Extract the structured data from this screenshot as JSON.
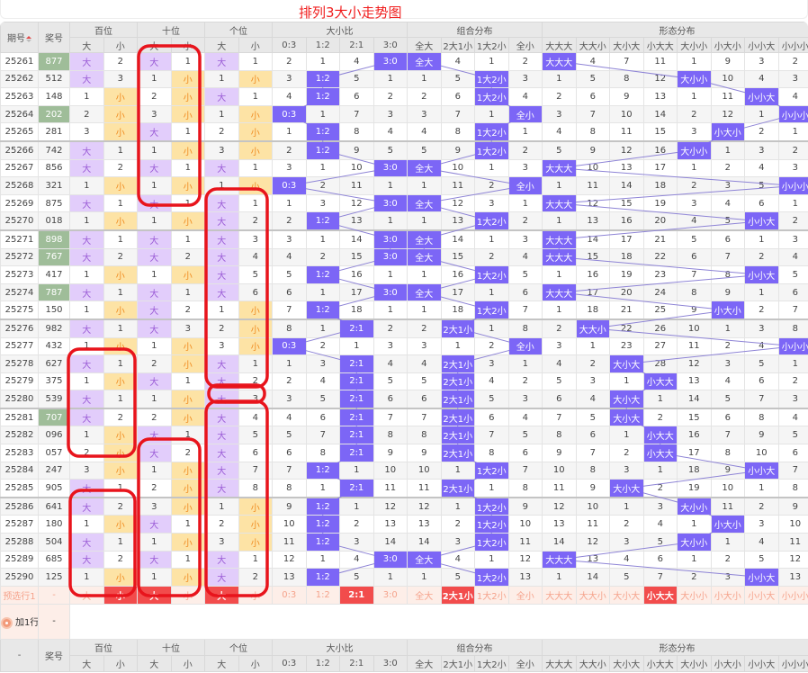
{
  "title": "排列3大小走势图",
  "colors": {
    "big_bg": "#e2cdfb",
    "small_bg": "#fde3a5",
    "hit": "#7c66f6",
    "highlight_number": "#9fbd99",
    "preselect_selected": "#f24c4c",
    "title": "#f01c1c",
    "annotation": "#e8141c"
  },
  "header": {
    "period": "期号",
    "number": "奖号",
    "sort_icon": "sort-arrows-icon",
    "groups": [
      {
        "label": "百位",
        "cols": [
          "大",
          "小"
        ]
      },
      {
        "label": "十位",
        "cols": [
          "大",
          "小"
        ]
      },
      {
        "label": "个位",
        "cols": [
          "大",
          "小"
        ]
      },
      {
        "label": "大小比",
        "cols": [
          "0:3",
          "1:2",
          "2:1",
          "3:0"
        ]
      },
      {
        "label": "组合分布",
        "cols": [
          "全大",
          "2大1小",
          "1大2小",
          "全小"
        ]
      },
      {
        "label": "形态分布",
        "cols": [
          "大大大",
          "大大小",
          "大小大",
          "小大大",
          "大小小",
          "小大小",
          "小小大",
          "小小小"
        ]
      }
    ]
  },
  "rows": [
    {
      "period": "25261",
      "number": "877",
      "highlight": true,
      "cells": [
        "大",
        "2",
        "大",
        "1",
        "大",
        "1",
        "2",
        "1",
        "4",
        "3:0",
        "全大",
        "4",
        "1",
        "2",
        "大大大",
        "4",
        "7",
        "11",
        "1",
        "9",
        "3",
        "2"
      ]
    },
    {
      "period": "25262",
      "number": "512",
      "highlight": false,
      "cells": [
        "大",
        "3",
        "1",
        "小",
        "1",
        "小",
        "3",
        "1:2",
        "5",
        "1",
        "1",
        "5",
        "1大2小",
        "3",
        "1",
        "5",
        "8",
        "12",
        "大小小",
        "10",
        "4",
        "3"
      ]
    },
    {
      "period": "25263",
      "number": "148",
      "highlight": false,
      "cells": [
        "1",
        "小",
        "2",
        "小",
        "大",
        "1",
        "4",
        "1:2",
        "6",
        "2",
        "2",
        "6",
        "1大2小",
        "4",
        "2",
        "6",
        "9",
        "13",
        "1",
        "11",
        "小小大",
        "4"
      ]
    },
    {
      "period": "25264",
      "number": "202",
      "highlight": true,
      "cells": [
        "2",
        "小",
        "3",
        "小",
        "1",
        "小",
        "0:3",
        "1",
        "7",
        "3",
        "3",
        "7",
        "1",
        "全小",
        "3",
        "7",
        "10",
        "14",
        "2",
        "12",
        "1",
        "小小小"
      ]
    },
    {
      "period": "25265",
      "number": "281",
      "highlight": false,
      "cells": [
        "3",
        "小",
        "大",
        "1",
        "2",
        "小",
        "1",
        "1:2",
        "8",
        "4",
        "4",
        "8",
        "1大2小",
        "1",
        "4",
        "8",
        "11",
        "15",
        "3",
        "小大小",
        "2",
        "1"
      ]
    },
    {
      "period": "25266",
      "number": "742",
      "highlight": false,
      "cells": [
        "大",
        "1",
        "1",
        "小",
        "3",
        "小",
        "2",
        "1:2",
        "9",
        "5",
        "5",
        "9",
        "1大2小",
        "2",
        "5",
        "9",
        "12",
        "16",
        "大小小",
        "1",
        "3",
        "2"
      ]
    },
    {
      "period": "25267",
      "number": "856",
      "highlight": false,
      "cells": [
        "大",
        "2",
        "大",
        "1",
        "大",
        "1",
        "3",
        "1",
        "10",
        "3:0",
        "全大",
        "10",
        "1",
        "3",
        "大大大",
        "10",
        "13",
        "17",
        "1",
        "2",
        "4",
        "3"
      ]
    },
    {
      "period": "25268",
      "number": "321",
      "highlight": false,
      "cells": [
        "1",
        "小",
        "1",
        "小",
        "1",
        "小",
        "0:3",
        "2",
        "11",
        "1",
        "1",
        "11",
        "2",
        "全小",
        "1",
        "11",
        "14",
        "18",
        "2",
        "3",
        "5",
        "小小小"
      ]
    },
    {
      "period": "25269",
      "number": "875",
      "highlight": false,
      "cells": [
        "大",
        "1",
        "大",
        "1",
        "大",
        "1",
        "1",
        "3",
        "12",
        "3:0",
        "全大",
        "12",
        "3",
        "1",
        "大大大",
        "12",
        "15",
        "19",
        "3",
        "4",
        "6",
        "1"
      ]
    },
    {
      "period": "25270",
      "number": "018",
      "highlight": false,
      "cells": [
        "1",
        "小",
        "1",
        "小",
        "大",
        "2",
        "2",
        "1:2",
        "13",
        "1",
        "1",
        "13",
        "1大2小",
        "2",
        "1",
        "13",
        "16",
        "20",
        "4",
        "5",
        "小小大",
        "2"
      ]
    },
    {
      "period": "25271",
      "number": "898",
      "highlight": true,
      "cells": [
        "大",
        "1",
        "大",
        "1",
        "大",
        "3",
        "3",
        "1",
        "14",
        "3:0",
        "全大",
        "14",
        "1",
        "3",
        "大大大",
        "14",
        "17",
        "21",
        "5",
        "6",
        "1",
        "3"
      ]
    },
    {
      "period": "25272",
      "number": "767",
      "highlight": true,
      "cells": [
        "大",
        "2",
        "大",
        "2",
        "大",
        "4",
        "4",
        "2",
        "15",
        "3:0",
        "全大",
        "15",
        "2",
        "4",
        "大大大",
        "15",
        "18",
        "22",
        "6",
        "7",
        "2",
        "4"
      ]
    },
    {
      "period": "25273",
      "number": "417",
      "highlight": false,
      "cells": [
        "1",
        "小",
        "1",
        "小",
        "大",
        "5",
        "5",
        "1:2",
        "16",
        "1",
        "1",
        "16",
        "1大2小",
        "5",
        "1",
        "16",
        "19",
        "23",
        "7",
        "8",
        "小小大",
        "5"
      ]
    },
    {
      "period": "25274",
      "number": "787",
      "highlight": true,
      "cells": [
        "大",
        "1",
        "大",
        "1",
        "大",
        "6",
        "6",
        "1",
        "17",
        "3:0",
        "全大",
        "17",
        "1",
        "6",
        "大大大",
        "17",
        "20",
        "24",
        "8",
        "9",
        "1",
        "6"
      ]
    },
    {
      "period": "25275",
      "number": "150",
      "highlight": false,
      "cells": [
        "1",
        "小",
        "大",
        "2",
        "1",
        "小",
        "7",
        "1:2",
        "18",
        "1",
        "1",
        "18",
        "1大2小",
        "7",
        "1",
        "18",
        "21",
        "25",
        "9",
        "小大小",
        "2",
        "7"
      ]
    },
    {
      "period": "25276",
      "number": "982",
      "highlight": false,
      "cells": [
        "大",
        "1",
        "大",
        "3",
        "2",
        "小",
        "8",
        "1",
        "2:1",
        "2",
        "2",
        "2大1小",
        "1",
        "8",
        "2",
        "大大小",
        "22",
        "26",
        "10",
        "1",
        "3",
        "8"
      ]
    },
    {
      "period": "25277",
      "number": "432",
      "highlight": false,
      "cells": [
        "1",
        "小",
        "1",
        "小",
        "3",
        "小",
        "0:3",
        "2",
        "1",
        "3",
        "3",
        "1",
        "2",
        "全小",
        "3",
        "1",
        "23",
        "27",
        "11",
        "2",
        "4",
        "小小小"
      ]
    },
    {
      "period": "25278",
      "number": "627",
      "highlight": false,
      "cells": [
        "大",
        "1",
        "2",
        "小",
        "大",
        "1",
        "1",
        "3",
        "2:1",
        "4",
        "4",
        "2大1小",
        "3",
        "1",
        "4",
        "2",
        "大小大",
        "28",
        "12",
        "3",
        "5",
        "1"
      ]
    },
    {
      "period": "25279",
      "number": "375",
      "highlight": false,
      "cells": [
        "1",
        "小",
        "大",
        "1",
        "大",
        "2",
        "2",
        "4",
        "2:1",
        "5",
        "5",
        "2大1小",
        "4",
        "2",
        "5",
        "3",
        "1",
        "小大大",
        "13",
        "4",
        "6",
        "2"
      ]
    },
    {
      "period": "25280",
      "number": "539",
      "highlight": false,
      "cells": [
        "大",
        "1",
        "1",
        "小",
        "大",
        "3",
        "3",
        "5",
        "2:1",
        "6",
        "6",
        "2大1小",
        "5",
        "3",
        "6",
        "4",
        "大小大",
        "1",
        "14",
        "5",
        "7",
        "3"
      ]
    },
    {
      "period": "25281",
      "number": "707",
      "highlight": true,
      "cells": [
        "大",
        "2",
        "2",
        "小",
        "大",
        "4",
        "4",
        "6",
        "2:1",
        "7",
        "7",
        "2大1小",
        "6",
        "4",
        "7",
        "5",
        "大小大",
        "2",
        "15",
        "6",
        "8",
        "4"
      ]
    },
    {
      "period": "25282",
      "number": "096",
      "highlight": false,
      "cells": [
        "1",
        "小",
        "大",
        "1",
        "大",
        "5",
        "5",
        "7",
        "2:1",
        "8",
        "8",
        "2大1小",
        "7",
        "5",
        "8",
        "6",
        "1",
        "小大大",
        "16",
        "7",
        "9",
        "5"
      ]
    },
    {
      "period": "25283",
      "number": "057",
      "highlight": false,
      "cells": [
        "2",
        "小",
        "大",
        "2",
        "大",
        "6",
        "6",
        "8",
        "2:1",
        "9",
        "9",
        "2大1小",
        "8",
        "6",
        "9",
        "7",
        "2",
        "小大大",
        "17",
        "8",
        "10",
        "6"
      ]
    },
    {
      "period": "25284",
      "number": "247",
      "highlight": false,
      "cells": [
        "3",
        "小",
        "1",
        "小",
        "大",
        "7",
        "7",
        "1:2",
        "1",
        "10",
        "10",
        "1",
        "1大2小",
        "7",
        "10",
        "8",
        "3",
        "1",
        "18",
        "9",
        "小小大",
        "7"
      ]
    },
    {
      "period": "25285",
      "number": "905",
      "highlight": false,
      "cells": [
        "大",
        "1",
        "2",
        "小",
        "大",
        "8",
        "8",
        "1",
        "2:1",
        "11",
        "11",
        "2大1小",
        "1",
        "8",
        "11",
        "9",
        "大小大",
        "2",
        "19",
        "10",
        "1",
        "8"
      ]
    },
    {
      "period": "25286",
      "number": "641",
      "highlight": false,
      "cells": [
        "大",
        "2",
        "3",
        "小",
        "1",
        "小",
        "9",
        "1:2",
        "1",
        "12",
        "12",
        "1",
        "1大2小",
        "9",
        "12",
        "10",
        "1",
        "3",
        "大小小",
        "11",
        "2",
        "9"
      ]
    },
    {
      "period": "25287",
      "number": "180",
      "highlight": false,
      "cells": [
        "1",
        "小",
        "大",
        "1",
        "2",
        "小",
        "10",
        "1:2",
        "2",
        "13",
        "13",
        "2",
        "1大2小",
        "10",
        "13",
        "11",
        "2",
        "4",
        "1",
        "小大小",
        "3",
        "10"
      ]
    },
    {
      "period": "25288",
      "number": "504",
      "highlight": false,
      "cells": [
        "大",
        "1",
        "1",
        "小",
        "3",
        "小",
        "11",
        "1:2",
        "3",
        "14",
        "14",
        "3",
        "1大2小",
        "11",
        "14",
        "12",
        "3",
        "5",
        "大小小",
        "1",
        "4",
        "11"
      ]
    },
    {
      "period": "25289",
      "number": "685",
      "highlight": false,
      "cells": [
        "大",
        "2",
        "大",
        "1",
        "大",
        "1",
        "12",
        "1",
        "4",
        "3:0",
        "全大",
        "4",
        "1",
        "12",
        "大大大",
        "13",
        "4",
        "6",
        "1",
        "2",
        "5",
        "12"
      ]
    },
    {
      "period": "25290",
      "number": "125",
      "highlight": false,
      "cells": [
        "1",
        "小",
        "1",
        "小",
        "大",
        "2",
        "13",
        "1:2",
        "5",
        "1",
        "1",
        "5",
        "1大2小",
        "13",
        "1",
        "14",
        "5",
        "7",
        "2",
        "3",
        "小小大",
        "13"
      ]
    }
  ],
  "preselect": {
    "label": "预选行1",
    "number": "-",
    "options": [
      "大",
      "小",
      "大",
      "小",
      "大",
      "小",
      "0:3",
      "1:2",
      "2:1",
      "3:0",
      "全大",
      "2大1小",
      "1大2小",
      "全小",
      "大大大",
      "大大小",
      "大小大",
      "小大大",
      "大小小",
      "小大小",
      "小小大",
      "小小小"
    ],
    "selected": [
      1,
      2,
      4,
      8,
      11,
      17
    ]
  },
  "add_row": {
    "label": "加1行",
    "number": "-",
    "icon": "add-circle-icon"
  },
  "footer_header": {
    "period": "-",
    "number": "奖号"
  }
}
